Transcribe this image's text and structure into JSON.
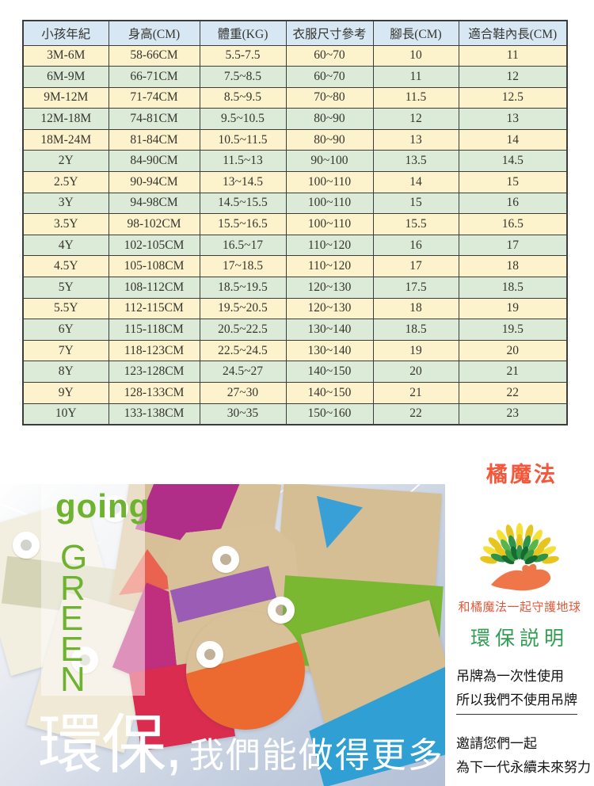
{
  "size_chart": {
    "columns": [
      "小孩年紀",
      "身高(CM)",
      "體重(KG)",
      "衣服尺寸參考",
      "腳長(CM)",
      "適合鞋內長(CM)"
    ],
    "rows": [
      [
        "3M-6M",
        "58-66CM",
        "5.5-7.5",
        "60~70",
        "10",
        "11"
      ],
      [
        "6M-9M",
        "66-71CM",
        "7.5~8.5",
        "60~70",
        "11",
        "12"
      ],
      [
        "9M-12M",
        "71-74CM",
        "8.5~9.5",
        "70~80",
        "11.5",
        "12.5"
      ],
      [
        "12M-18M",
        "74-81CM",
        "9.5~10.5",
        "80~90",
        "12",
        "13"
      ],
      [
        "18M-24M",
        "81-84CM",
        "10.5~11.5",
        "80~90",
        "13",
        "14"
      ],
      [
        "2Y",
        "84-90CM",
        "11.5~13",
        "90~100",
        "13.5",
        "14.5"
      ],
      [
        "2.5Y",
        "90-94CM",
        "13~14.5",
        "100~110",
        "14",
        "15"
      ],
      [
        "3Y",
        "94-98CM",
        "14.5~15.5",
        "100~110",
        "15",
        "16"
      ],
      [
        "3.5Y",
        "98-102CM",
        "15.5~16.5",
        "100~110",
        "15.5",
        "16.5"
      ],
      [
        "4Y",
        "102-105CM",
        "16.5~17",
        "110~120",
        "16",
        "17"
      ],
      [
        "4.5Y",
        "105-108CM",
        "17~18.5",
        "110~120",
        "17",
        "18"
      ],
      [
        "5Y",
        "108-112CM",
        "18.5~19.5",
        "120~130",
        "17.5",
        "18.5"
      ],
      [
        "5.5Y",
        "112-115CM",
        "19.5~20.5",
        "120~130",
        "18",
        "19"
      ],
      [
        "6Y",
        "115-118CM",
        "20.5~22.5",
        "130~140",
        "18.5",
        "19.5"
      ],
      [
        "7Y",
        "118-123CM",
        "22.5~24.5",
        "130~140",
        "19",
        "20"
      ],
      [
        "8Y",
        "123-128CM",
        "24.5~27",
        "140~150",
        "20",
        "21"
      ],
      [
        "9Y",
        "128-133CM",
        "27~30",
        "140~150",
        "21",
        "22"
      ],
      [
        "10Y",
        "133-138CM",
        "30~35",
        "150~160",
        "22",
        "23"
      ]
    ]
  },
  "brand": {
    "name": "橘魔法",
    "color": "#f4573a"
  },
  "hero": {
    "going": "going",
    "green_letters": [
      "G",
      "R",
      "E",
      "E",
      "N"
    ],
    "headline_main": "環保,",
    "headline_sub": "我們能做得更多",
    "accent_green": "#6db32f"
  },
  "eco_panel": {
    "logo_icon": "tree-hand-logo",
    "tagline": "和橘魔法一起守護地球",
    "title": "環保説明",
    "lines": [
      "吊牌為一次性使用",
      "所以我們不使用吊牌"
    ],
    "invite_lines": [
      "邀請您們一起",
      "為下一代永續未來努力"
    ],
    "title_color": "#2f9e50",
    "tagline_color": "#e25838"
  },
  "colors": {
    "table_header_bg": "#d7e7f3",
    "table_row_cream": "#fcf3cd",
    "table_row_green": "#dcead8",
    "table_border": "#3c3c3c",
    "photo_bg": "#b9c6d9"
  }
}
